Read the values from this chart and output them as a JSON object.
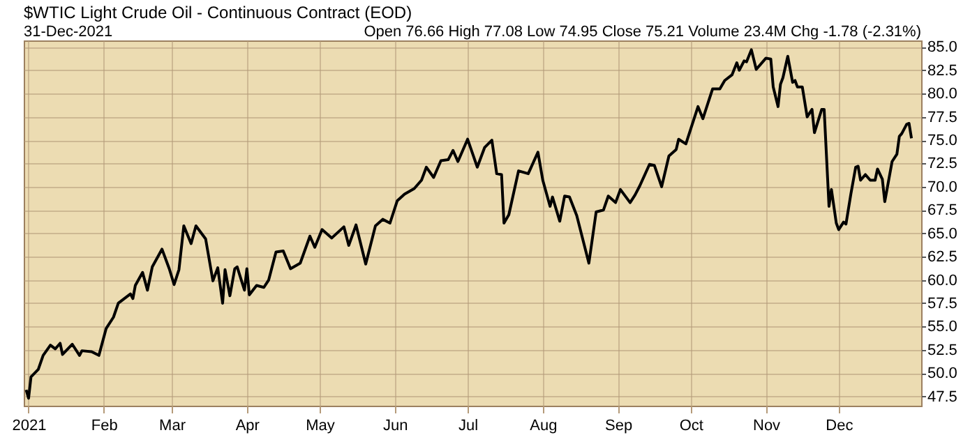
{
  "chart_data": {
    "type": "line",
    "title": "$WTIC Light Crude Oil - Continuous Contract (EOD)",
    "subtitle": "31-Dec-2021",
    "annotations": [
      "Open 76.66  High 77.08  Low 74.95  Close 75.21  Volume 23.4M  Chg -1.78 (-2.31%)"
    ],
    "x": [
      "2020-12-31",
      "2021-01-01",
      "2021-01-02",
      "2021-01-05",
      "2021-01-07",
      "2021-01-10",
      "2021-01-12",
      "2021-01-14",
      "2021-01-15",
      "2021-01-19",
      "2021-01-22",
      "2021-01-23",
      "2021-01-27",
      "2021-01-30",
      "2021-02-02",
      "2021-02-05",
      "2021-02-07",
      "2021-02-12",
      "2021-02-13",
      "2021-02-14",
      "2021-02-17",
      "2021-02-19",
      "2021-02-21",
      "2021-02-25",
      "2021-02-28",
      "2021-03-02",
      "2021-03-04",
      "2021-03-06",
      "2021-03-09",
      "2021-03-11",
      "2021-03-15",
      "2021-03-18",
      "2021-03-20",
      "2021-03-22",
      "2021-03-23",
      "2021-03-25",
      "2021-03-27",
      "2021-03-28",
      "2021-03-31",
      "2021-04-01",
      "2021-04-02",
      "2021-04-05",
      "2021-04-08",
      "2021-04-10",
      "2021-04-13",
      "2021-04-16",
      "2021-04-19",
      "2021-04-23",
      "2021-04-27",
      "2021-04-29",
      "2021-05-02",
      "2021-05-06",
      "2021-05-11",
      "2021-05-13",
      "2021-05-16",
      "2021-05-20",
      "2021-05-24",
      "2021-05-27",
      "2021-05-30",
      "2021-06-02",
      "2021-06-05",
      "2021-06-09",
      "2021-06-12",
      "2021-06-14",
      "2021-06-17",
      "2021-06-20",
      "2021-06-23",
      "2021-06-25",
      "2021-06-27",
      "2021-07-01",
      "2021-07-05",
      "2021-07-08",
      "2021-07-11",
      "2021-07-13",
      "2021-07-15",
      "2021-07-16",
      "2021-07-18",
      "2021-07-22",
      "2021-07-26",
      "2021-07-30",
      "2021-08-01",
      "2021-08-04",
      "2021-08-05",
      "2021-08-08",
      "2021-08-10",
      "2021-08-12",
      "2021-08-15",
      "2021-08-20",
      "2021-08-23",
      "2021-08-26",
      "2021-08-28",
      "2021-08-31",
      "2021-09-02",
      "2021-09-06",
      "2021-09-08",
      "2021-09-10",
      "2021-09-14",
      "2021-09-16",
      "2021-09-19",
      "2021-09-22",
      "2021-09-25",
      "2021-09-26",
      "2021-09-29",
      "2021-09-30",
      "2021-10-04",
      "2021-10-06",
      "2021-10-10",
      "2021-10-13",
      "2021-10-15",
      "2021-10-18",
      "2021-10-20",
      "2021-10-21",
      "2021-10-23",
      "2021-10-24",
      "2021-10-26",
      "2021-10-28",
      "2021-11-01",
      "2021-11-03",
      "2021-11-04",
      "2021-11-06",
      "2021-11-07",
      "2021-11-08",
      "2021-11-10",
      "2021-11-12",
      "2021-11-13",
      "2021-11-14",
      "2021-11-16",
      "2021-11-18",
      "2021-11-20",
      "2021-11-21",
      "2021-11-24",
      "2021-11-25",
      "2021-11-27",
      "2021-11-28",
      "2021-11-30",
      "2021-12-01",
      "2021-12-03",
      "2021-12-04",
      "2021-12-06",
      "2021-12-08",
      "2021-12-09",
      "2021-12-10",
      "2021-12-12",
      "2021-12-14",
      "2021-12-16",
      "2021-12-17",
      "2021-12-19",
      "2021-12-20",
      "2021-12-23",
      "2021-12-25",
      "2021-12-26",
      "2021-12-27",
      "2021-12-29",
      "2021-12-30",
      "2021-12-31"
    ],
    "series": [
      {
        "color": "#000000",
        "values": [
          48.2,
          47.3,
          49.6,
          50.4,
          51.9,
          53.0,
          52.6,
          53.2,
          52.0,
          53.1,
          51.9,
          52.4,
          52.3,
          51.9,
          54.8,
          56.0,
          57.5,
          58.5,
          58.0,
          59.4,
          60.8,
          58.9,
          61.4,
          63.3,
          61.2,
          59.5,
          61.1,
          65.8,
          63.9,
          65.8,
          64.4,
          59.9,
          61.3,
          57.5,
          61.1,
          58.3,
          61.2,
          61.4,
          58.9,
          61.2,
          58.4,
          59.4,
          59.2,
          60.0,
          63.0,
          63.1,
          61.2,
          61.8,
          64.7,
          63.5,
          65.4,
          64.5,
          65.7,
          63.7,
          65.9,
          61.7,
          65.8,
          66.5,
          66.1,
          68.5,
          69.2,
          69.8,
          70.7,
          72.1,
          71.0,
          72.8,
          72.9,
          73.9,
          72.7,
          75.1,
          72.1,
          74.2,
          75.0,
          71.4,
          71.3,
          66.1,
          67.0,
          71.7,
          71.4,
          73.7,
          70.7,
          67.9,
          68.9,
          66.3,
          69.0,
          68.9,
          66.9,
          61.8,
          67.3,
          67.5,
          69.0,
          68.3,
          69.7,
          68.3,
          69.1,
          70.1,
          72.4,
          72.3,
          70.0,
          73.3,
          74.0,
          75.1,
          74.6,
          75.4,
          78.6,
          77.3,
          80.5,
          80.5,
          81.4,
          82.0,
          83.3,
          82.5,
          83.5,
          83.4,
          84.7,
          82.6,
          83.8,
          83.7,
          80.7,
          78.6,
          81.0,
          81.7,
          84.0,
          81.2,
          81.4,
          80.7,
          80.7,
          77.5,
          78.3,
          75.8,
          78.3,
          78.3,
          67.9,
          69.7,
          66.1,
          65.4,
          66.2,
          66.0,
          69.2,
          72.1,
          72.2,
          70.7,
          71.3,
          70.7,
          70.7,
          71.9,
          70.8,
          68.4,
          72.7,
          73.5,
          75.4,
          75.7,
          76.7,
          76.8,
          75.2
        ]
      }
    ],
    "xlim": [
      "2020-12-30",
      "2022-01-04"
    ],
    "xticks": [
      {
        "value": "2021-01-01",
        "label": "2021"
      },
      {
        "value": "2021-02-01",
        "label": "Feb"
      },
      {
        "value": "2021-03-01",
        "label": "Mar"
      },
      {
        "value": "2021-04-01",
        "label": "Apr"
      },
      {
        "value": "2021-05-01",
        "label": "May"
      },
      {
        "value": "2021-06-01",
        "label": "Jun"
      },
      {
        "value": "2021-07-01",
        "label": "Jul"
      },
      {
        "value": "2021-08-01",
        "label": "Aug"
      },
      {
        "value": "2021-09-01",
        "label": "Sep"
      },
      {
        "value": "2021-10-01",
        "label": "Oct"
      },
      {
        "value": "2021-11-01",
        "label": "Nov"
      },
      {
        "value": "2021-12-01",
        "label": "Dec"
      }
    ],
    "ylim": [
      46.5,
      85.7
    ],
    "yticks": [
      {
        "value": 47.5,
        "label": "47.5"
      },
      {
        "value": 50,
        "label": "50.0"
      },
      {
        "value": 52.5,
        "label": "52.5"
      },
      {
        "value": 55,
        "label": "55.0"
      },
      {
        "value": 57.5,
        "label": "57.5"
      },
      {
        "value": 60,
        "label": "60.0"
      },
      {
        "value": 62.5,
        "label": "62.5"
      },
      {
        "value": 65,
        "label": "65.0"
      },
      {
        "value": 67.5,
        "label": "67.5"
      },
      {
        "value": 70,
        "label": "70.0"
      },
      {
        "value": 72.5,
        "label": "72.5"
      },
      {
        "value": 75,
        "label": "75.0"
      },
      {
        "value": 77.5,
        "label": "77.5"
      },
      {
        "value": 80,
        "label": "80.0"
      },
      {
        "value": 82.5,
        "label": "82.5"
      },
      {
        "value": 85,
        "label": "85.0"
      }
    ],
    "grid": true,
    "marker": "none",
    "line_style": "solid"
  }
}
